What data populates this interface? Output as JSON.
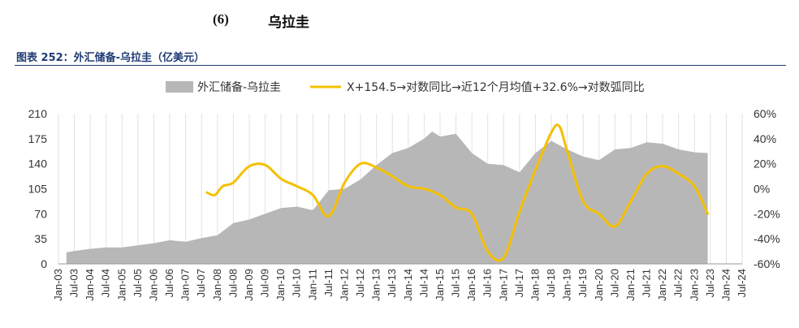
{
  "heading": {
    "number": "(6)",
    "name": "乌拉圭"
  },
  "caption": "图表 252：外汇储备-乌拉圭（亿美元）",
  "chart_data": {
    "type": "area",
    "x_labels": [
      "Jan-03",
      "Jul-03",
      "Jan-04",
      "Jul-04",
      "Jan-05",
      "Jul-05",
      "Jan-06",
      "Jul-06",
      "Jan-07",
      "Jul-07",
      "Jan-08",
      "Jul-08",
      "Jan-09",
      "Jul-09",
      "Jan-10",
      "Jul-10",
      "Jan-11",
      "Jul-11",
      "Jan-12",
      "Jul-12",
      "Jan-13",
      "Jul-13",
      "Jan-14",
      "Jul-14",
      "Jan-15",
      "Jul-15",
      "Jan-16",
      "Jul-16",
      "Jan-17",
      "Jul-17",
      "Jan-18",
      "Jul-18",
      "Jan-19",
      "Jul-19",
      "Jan-20",
      "Jul-20",
      "Jan-21",
      "Jul-21",
      "Jan-22",
      "Jul-22",
      "Jan-23",
      "Jul-23",
      "Jan-24",
      "Jul-24"
    ],
    "y_left": {
      "ticks": [
        "0",
        "35",
        "70",
        "105",
        "140",
        "175",
        "210"
      ],
      "min": 0,
      "max": 210
    },
    "y_right": {
      "ticks": [
        "-60%",
        "-40%",
        "-20%",
        "0%",
        "20%",
        "40%",
        "60%"
      ],
      "min": -60,
      "max": 60
    },
    "grid": "vertical",
    "legend_position": "top",
    "series": [
      {
        "name": "外汇储备-乌拉圭",
        "axis": "left",
        "color": "#b7b7b7",
        "points": [
          [
            "Apr-03",
            16
          ],
          [
            "Jul-03",
            18
          ],
          [
            "Jan-04",
            21
          ],
          [
            "Jul-04",
            23
          ],
          [
            "Jan-05",
            23
          ],
          [
            "Jul-05",
            26
          ],
          [
            "Jan-06",
            29
          ],
          [
            "Jul-06",
            33
          ],
          [
            "Jan-07",
            31
          ],
          [
            "Jul-07",
            36
          ],
          [
            "Jan-08",
            40
          ],
          [
            "Jul-08",
            57
          ],
          [
            "Jan-09",
            62
          ],
          [
            "Jul-09",
            70
          ],
          [
            "Jan-10",
            78
          ],
          [
            "Jul-10",
            80
          ],
          [
            "Jan-11",
            75
          ],
          [
            "Jul-11",
            103
          ],
          [
            "Jan-12",
            105
          ],
          [
            "Jul-12",
            118
          ],
          [
            "Jan-13",
            138
          ],
          [
            "Jul-13",
            155
          ],
          [
            "Jan-14",
            162
          ],
          [
            "Jul-14",
            175
          ],
          [
            "Oct-14",
            185
          ],
          [
            "Jan-15",
            178
          ],
          [
            "Jul-15",
            182
          ],
          [
            "Jan-16",
            155
          ],
          [
            "Jul-16",
            140
          ],
          [
            "Jan-17",
            138
          ],
          [
            "Jul-17",
            128
          ],
          [
            "Jan-18",
            155
          ],
          [
            "Jul-18",
            172
          ],
          [
            "Jan-19",
            160
          ],
          [
            "Jul-19",
            150
          ],
          [
            "Jan-20",
            145
          ],
          [
            "Jul-20",
            160
          ],
          [
            "Jan-21",
            162
          ],
          [
            "Jul-21",
            170
          ],
          [
            "Jan-22",
            168
          ],
          [
            "Jul-22",
            160
          ],
          [
            "Jan-23",
            156
          ],
          [
            "Jun-23",
            155
          ]
        ]
      },
      {
        "name": "X+154.5→对数同比→近12个月均值+32.6%→对数弧同比",
        "axis": "right",
        "color": "#f5c000",
        "points": [
          [
            "Sep-07",
            -3
          ],
          [
            "Dec-07",
            -5
          ],
          [
            "Mar-08",
            2
          ],
          [
            "Jul-08",
            5
          ],
          [
            "Jan-09",
            18
          ],
          [
            "Jul-09",
            19
          ],
          [
            "Jan-10",
            8
          ],
          [
            "Jul-10",
            2
          ],
          [
            "Jan-11",
            -5
          ],
          [
            "Jul-11",
            -22
          ],
          [
            "Jan-12",
            5
          ],
          [
            "Jul-12",
            20
          ],
          [
            "Jan-13",
            17
          ],
          [
            "Jul-13",
            10
          ],
          [
            "Jan-14",
            2
          ],
          [
            "Jul-14",
            0
          ],
          [
            "Jan-15",
            -5
          ],
          [
            "Jul-15",
            -15
          ],
          [
            "Jan-16",
            -20
          ],
          [
            "Jul-16",
            -50
          ],
          [
            "Jan-17",
            -55
          ],
          [
            "Jul-17",
            -18
          ],
          [
            "Jan-18",
            15
          ],
          [
            "Jul-18",
            45
          ],
          [
            "Oct-18",
            50
          ],
          [
            "Jan-19",
            30
          ],
          [
            "Jul-19",
            -10
          ],
          [
            "Jan-20",
            -20
          ],
          [
            "Jul-20",
            -30
          ],
          [
            "Jan-21",
            -10
          ],
          [
            "Jul-21",
            12
          ],
          [
            "Jan-22",
            18
          ],
          [
            "Jul-22",
            12
          ],
          [
            "Jan-23",
            2
          ],
          [
            "Jun-23",
            -20
          ]
        ]
      }
    ]
  }
}
